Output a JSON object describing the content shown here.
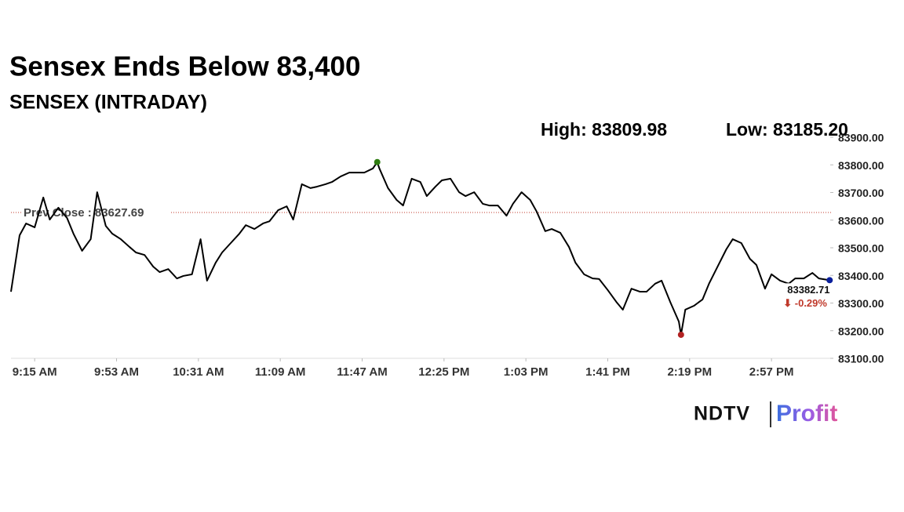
{
  "chart_data": {
    "type": "line",
    "title": "Sensex Ends Below 83,400",
    "subtitle": "SENSEX (INTRADAY)",
    "high": {
      "text": "High: 83809.98",
      "value": 83809.98
    },
    "low": {
      "text": "Low: 83185.20",
      "value": 83185.2
    },
    "prev_close": {
      "label": "Prev Close : 83627.69",
      "value": 83627.69
    },
    "change": {
      "value": -0.29,
      "label": "⬇ -0.29%"
    },
    "color": "#000000",
    "x": [
      -11,
      -7,
      -4,
      0,
      4,
      7,
      11,
      15,
      18,
      22,
      26,
      29,
      33,
      36,
      40,
      44,
      47,
      51,
      55,
      58,
      62,
      66,
      69,
      73,
      77,
      80,
      84,
      87,
      91,
      95,
      98,
      102,
      106,
      109,
      113,
      117,
      120,
      124,
      128,
      131,
      135,
      138,
      142,
      146,
      149,
      153,
      157,
      159,
      160,
      164,
      168,
      171,
      175,
      179,
      182,
      186,
      189,
      193,
      197,
      200,
      204,
      208,
      211,
      215,
      219,
      222,
      226,
      230,
      233,
      237,
      240,
      244,
      248,
      251,
      255,
      259,
      262,
      266,
      270,
      273,
      277,
      281,
      284,
      288,
      291,
      295,
      299,
      300,
      302,
      306,
      310,
      313,
      317,
      321,
      324,
      328,
      332,
      335,
      339,
      342,
      346,
      350,
      353,
      357,
      361,
      364,
      369
    ],
    "values": [
      83341,
      83545,
      83588,
      83574,
      83682,
      83602,
      83645,
      83608,
      83551,
      83489,
      83531,
      83701,
      83579,
      83551,
      83531,
      83503,
      83483,
      83474,
      83432,
      83412,
      83423,
      83389,
      83398,
      83404,
      83531,
      83381,
      83446,
      83483,
      83517,
      83551,
      83582,
      83568,
      83588,
      83596,
      83636,
      83650,
      83602,
      83730,
      83716,
      83721,
      83730,
      83738,
      83758,
      83772,
      83772,
      83772,
      83787,
      83809.98,
      83787,
      83716,
      83673,
      83653,
      83750,
      83738,
      83687,
      83721,
      83744,
      83750,
      83701,
      83687,
      83701,
      83659,
      83653,
      83653,
      83616,
      83659,
      83701,
      83673,
      83631,
      83560,
      83568,
      83554,
      83503,
      83446,
      83404,
      83389,
      83387,
      83347,
      83304,
      83276,
      83352,
      83341,
      83341,
      83370,
      83381,
      83304,
      83233,
      83185.2,
      83276,
      83290,
      83313,
      83370,
      83432,
      83494,
      83531,
      83517,
      83460,
      83438,
      83352,
      83404,
      83381,
      83370,
      83389,
      83389,
      83409,
      83389,
      83382.71
    ],
    "xlim": [
      -11,
      370
    ],
    "xticks": [
      {
        "value": 0,
        "label": "9:15 AM"
      },
      {
        "value": 38,
        "label": "9:53 AM"
      },
      {
        "value": 76,
        "label": "10:31 AM"
      },
      {
        "value": 114,
        "label": "11:09 AM"
      },
      {
        "value": 152,
        "label": "11:47 AM"
      },
      {
        "value": 190,
        "label": "12:25 PM"
      },
      {
        "value": 228,
        "label": "1:03 PM"
      },
      {
        "value": 266,
        "label": "1:41 PM"
      },
      {
        "value": 304,
        "label": "2:19 PM"
      },
      {
        "value": 342,
        "label": "2:57 PM"
      }
    ],
    "ylim": [
      83100,
      83900
    ],
    "yticks": [
      {
        "value": 83100,
        "label": "83100.00"
      },
      {
        "value": 83200,
        "label": "83200.00"
      },
      {
        "value": 83300,
        "label": "83300.00"
      },
      {
        "value": 83400,
        "label": "83400.00"
      },
      {
        "value": 83500,
        "label": "83500.00"
      },
      {
        "value": 83600,
        "label": "83600.00"
      },
      {
        "value": 83700,
        "label": "83700.00"
      },
      {
        "value": 83800,
        "label": "83800.00"
      },
      {
        "value": 83900,
        "label": "83900.00"
      }
    ],
    "logo": {
      "brand": "NDTV",
      "product": "Profit"
    }
  }
}
